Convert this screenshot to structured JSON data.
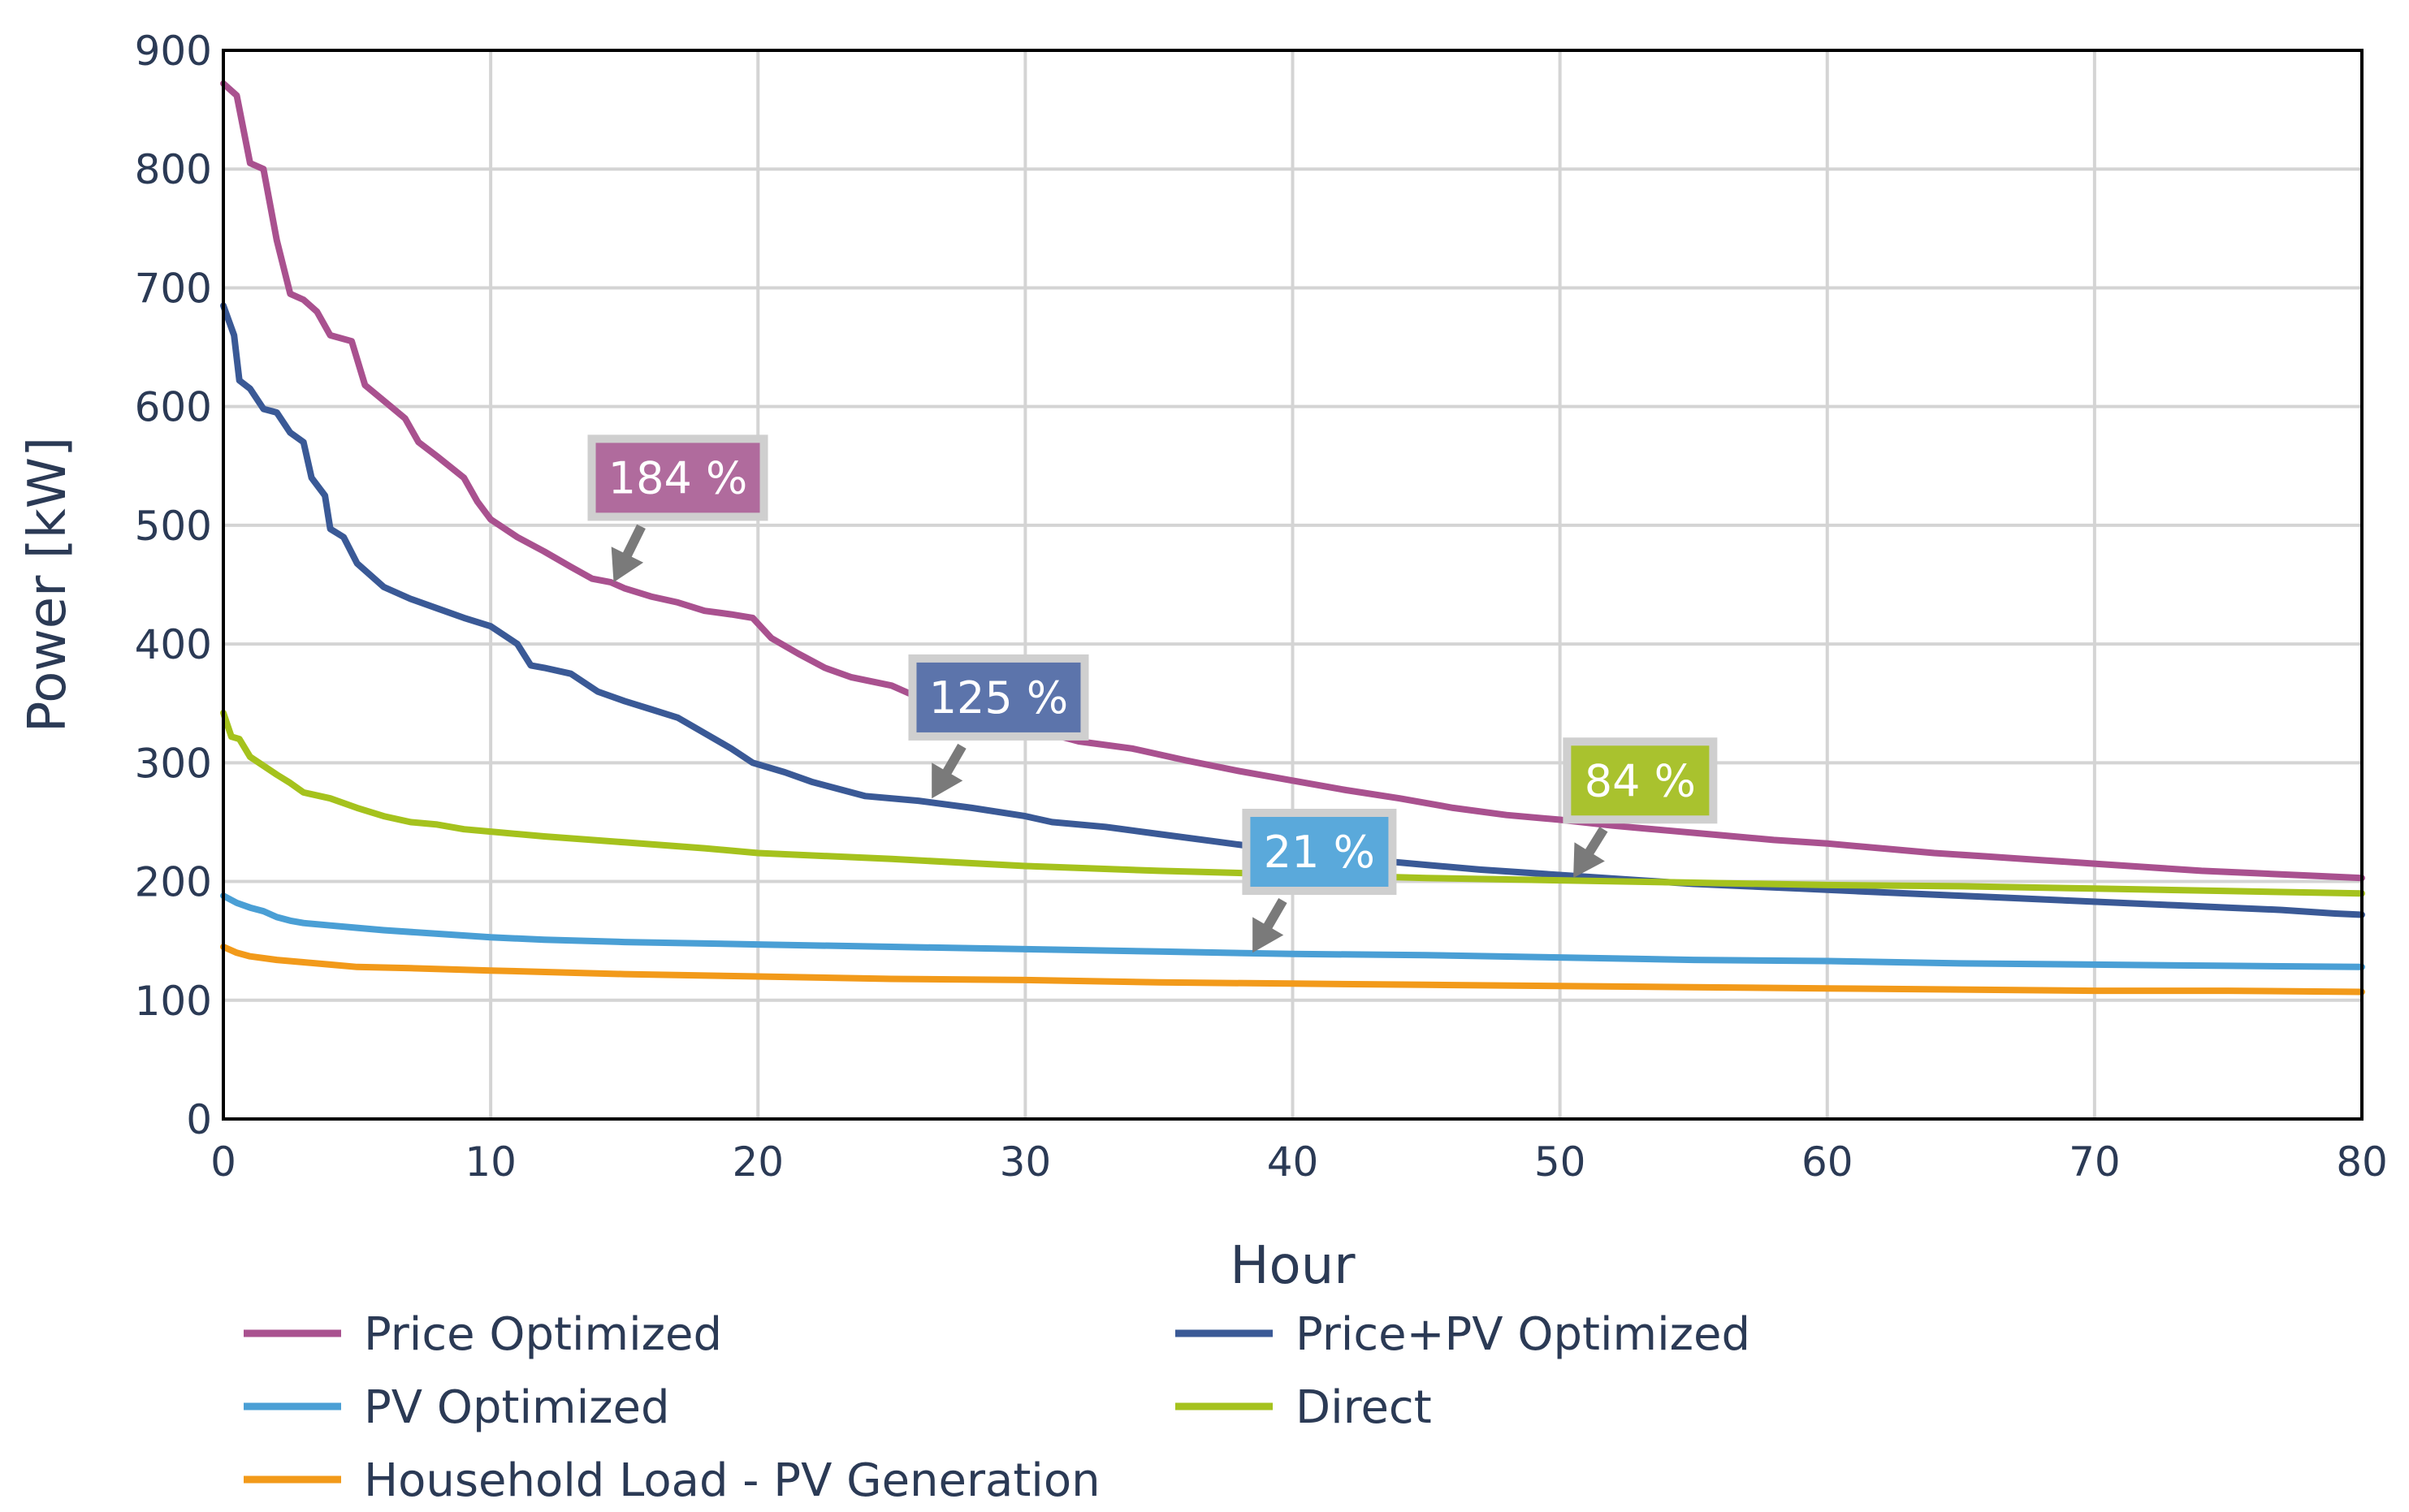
{
  "chart_data": {
    "type": "line",
    "title": "",
    "xlabel": "Hour",
    "ylabel": "Power [kW]",
    "xlim": [
      0,
      80
    ],
    "ylim": [
      0,
      900
    ],
    "x_ticks": [
      0,
      10,
      20,
      30,
      40,
      50,
      60,
      70,
      80
    ],
    "y_ticks": [
      0,
      100,
      200,
      300,
      400,
      500,
      600,
      700,
      800,
      900
    ],
    "grid": true,
    "legend_position": "bottom",
    "series": [
      {
        "name": "Price Optimized",
        "color": "#a9518f",
        "points": [
          [
            0,
            872
          ],
          [
            0.5,
            862
          ],
          [
            1,
            805
          ],
          [
            1.5,
            800
          ],
          [
            2,
            740
          ],
          [
            2.5,
            695
          ],
          [
            3,
            690
          ],
          [
            3.5,
            680
          ],
          [
            4,
            660
          ],
          [
            4.8,
            655
          ],
          [
            5.3,
            618
          ],
          [
            6,
            605
          ],
          [
            6.8,
            590
          ],
          [
            7.3,
            570
          ],
          [
            8,
            558
          ],
          [
            9,
            540
          ],
          [
            9.5,
            520
          ],
          [
            10,
            505
          ],
          [
            11,
            490
          ],
          [
            12,
            478
          ],
          [
            13,
            465
          ],
          [
            13.8,
            455
          ],
          [
            14.5,
            452
          ],
          [
            15,
            447
          ],
          [
            16,
            440
          ],
          [
            17,
            435
          ],
          [
            18,
            428
          ],
          [
            19,
            425
          ],
          [
            19.8,
            422
          ],
          [
            20.5,
            405
          ],
          [
            21.5,
            392
          ],
          [
            22.5,
            380
          ],
          [
            23.5,
            372
          ],
          [
            25,
            365
          ],
          [
            26,
            355
          ],
          [
            27,
            347
          ],
          [
            28,
            340
          ],
          [
            30,
            330
          ],
          [
            32,
            318
          ],
          [
            34,
            312
          ],
          [
            36,
            302
          ],
          [
            38,
            293
          ],
          [
            40,
            285
          ],
          [
            42,
            277
          ],
          [
            44,
            270
          ],
          [
            46,
            262
          ],
          [
            48,
            256
          ],
          [
            50,
            252
          ],
          [
            52,
            247
          ],
          [
            54,
            243
          ],
          [
            56,
            239
          ],
          [
            58,
            235
          ],
          [
            60,
            232
          ],
          [
            62,
            228
          ],
          [
            64,
            224
          ],
          [
            66,
            221
          ],
          [
            68,
            218
          ],
          [
            70,
            215
          ],
          [
            72,
            212
          ],
          [
            74,
            209
          ],
          [
            76,
            207
          ],
          [
            78,
            205
          ],
          [
            80,
            203
          ]
        ]
      },
      {
        "name": "Price+PV Optimized",
        "color": "#3a5996",
        "points": [
          [
            0,
            685
          ],
          [
            0.4,
            660
          ],
          [
            0.6,
            622
          ],
          [
            1,
            615
          ],
          [
            1.5,
            598
          ],
          [
            2,
            595
          ],
          [
            2.5,
            578
          ],
          [
            3,
            570
          ],
          [
            3.3,
            540
          ],
          [
            3.8,
            525
          ],
          [
            4,
            497
          ],
          [
            4.5,
            490
          ],
          [
            5,
            468
          ],
          [
            5.5,
            458
          ],
          [
            6,
            448
          ],
          [
            7,
            438
          ],
          [
            8,
            430
          ],
          [
            9,
            422
          ],
          [
            10,
            415
          ],
          [
            11,
            400
          ],
          [
            11.5,
            382
          ],
          [
            12,
            380
          ],
          [
            13,
            375
          ],
          [
            14,
            360
          ],
          [
            15,
            352
          ],
          [
            16,
            345
          ],
          [
            17,
            338
          ],
          [
            18,
            325
          ],
          [
            19,
            312
          ],
          [
            19.8,
            300
          ],
          [
            21,
            292
          ],
          [
            22,
            284
          ],
          [
            23,
            278
          ],
          [
            24,
            272
          ],
          [
            26,
            268
          ],
          [
            28,
            262
          ],
          [
            30,
            255
          ],
          [
            31,
            250
          ],
          [
            33,
            246
          ],
          [
            35,
            240
          ],
          [
            37,
            234
          ],
          [
            39,
            228
          ],
          [
            41,
            223
          ],
          [
            43,
            218
          ],
          [
            45,
            214
          ],
          [
            47,
            210
          ],
          [
            49,
            207
          ],
          [
            51,
            204
          ],
          [
            53,
            201
          ],
          [
            55,
            198
          ],
          [
            57,
            196
          ],
          [
            59,
            194
          ],
          [
            61,
            192
          ],
          [
            63,
            190
          ],
          [
            65,
            188
          ],
          [
            67,
            186
          ],
          [
            69,
            184
          ],
          [
            71,
            182
          ],
          [
            73,
            180
          ],
          [
            75,
            178
          ],
          [
            77,
            176
          ],
          [
            79,
            173
          ],
          [
            80,
            172
          ]
        ]
      },
      {
        "name": "PV Optimized",
        "color": "#4a9fd5",
        "points": [
          [
            0,
            188
          ],
          [
            0.5,
            182
          ],
          [
            1,
            178
          ],
          [
            1.5,
            175
          ],
          [
            2,
            170
          ],
          [
            2.5,
            167
          ],
          [
            3,
            165
          ],
          [
            4,
            163
          ],
          [
            5,
            161
          ],
          [
            6,
            159
          ],
          [
            8,
            156
          ],
          [
            10,
            153
          ],
          [
            12,
            151
          ],
          [
            15,
            149
          ],
          [
            20,
            147
          ],
          [
            25,
            145
          ],
          [
            30,
            143
          ],
          [
            35,
            141
          ],
          [
            40,
            139
          ],
          [
            45,
            138
          ],
          [
            50,
            136
          ],
          [
            55,
            134
          ],
          [
            60,
            133
          ],
          [
            65,
            131
          ],
          [
            70,
            130
          ],
          [
            75,
            129
          ],
          [
            80,
            128
          ]
        ]
      },
      {
        "name": "Direct",
        "color": "#a5c21d",
        "points": [
          [
            0,
            342
          ],
          [
            0.3,
            322
          ],
          [
            0.6,
            320
          ],
          [
            1,
            305
          ],
          [
            2,
            290
          ],
          [
            2.5,
            283
          ],
          [
            3,
            275
          ],
          [
            4,
            270
          ],
          [
            5,
            262
          ],
          [
            6,
            255
          ],
          [
            7,
            250
          ],
          [
            8,
            248
          ],
          [
            9,
            244
          ],
          [
            10,
            242
          ],
          [
            12,
            238
          ],
          [
            15,
            233
          ],
          [
            18,
            228
          ],
          [
            20,
            224
          ],
          [
            25,
            219
          ],
          [
            30,
            213
          ],
          [
            35,
            209
          ],
          [
            40,
            206
          ],
          [
            45,
            203
          ],
          [
            50,
            201
          ],
          [
            55,
            199
          ],
          [
            60,
            197
          ],
          [
            65,
            196
          ],
          [
            70,
            194
          ],
          [
            75,
            192
          ],
          [
            80,
            190
          ]
        ]
      },
      {
        "name": "Household Load - PV Generation",
        "color": "#f29a1a",
        "points": [
          [
            0,
            145
          ],
          [
            0.5,
            140
          ],
          [
            1,
            137
          ],
          [
            2,
            134
          ],
          [
            3,
            132
          ],
          [
            4,
            130
          ],
          [
            5,
            128
          ],
          [
            7,
            127
          ],
          [
            10,
            125
          ],
          [
            15,
            122
          ],
          [
            20,
            120
          ],
          [
            25,
            118
          ],
          [
            30,
            117
          ],
          [
            35,
            115
          ],
          [
            40,
            114
          ],
          [
            45,
            113
          ],
          [
            50,
            112
          ],
          [
            55,
            111
          ],
          [
            60,
            110
          ],
          [
            65,
            109
          ],
          [
            70,
            108
          ],
          [
            75,
            108
          ],
          [
            80,
            107
          ]
        ]
      }
    ],
    "annotations": [
      {
        "label": "184 %",
        "series": "Price Optimized",
        "color": "#b06b9d",
        "box_at": [
          17,
          540
        ],
        "arrow_to": [
          14.6,
          452
        ]
      },
      {
        "label": "125 %",
        "series": "Price+PV Optimized",
        "color": "#5c74ab",
        "box_at": [
          29,
          355
        ],
        "arrow_to": [
          26.5,
          270
        ]
      },
      {
        "label": "84 %",
        "series": "Direct",
        "color": "#a9c22e",
        "box_at": [
          53,
          285
        ],
        "arrow_to": [
          50.5,
          203
        ]
      },
      {
        "label": "21 %",
        "series": "PV Optimized",
        "color": "#5aa9db",
        "box_at": [
          41,
          225
        ],
        "arrow_to": [
          38.5,
          140
        ]
      }
    ]
  }
}
